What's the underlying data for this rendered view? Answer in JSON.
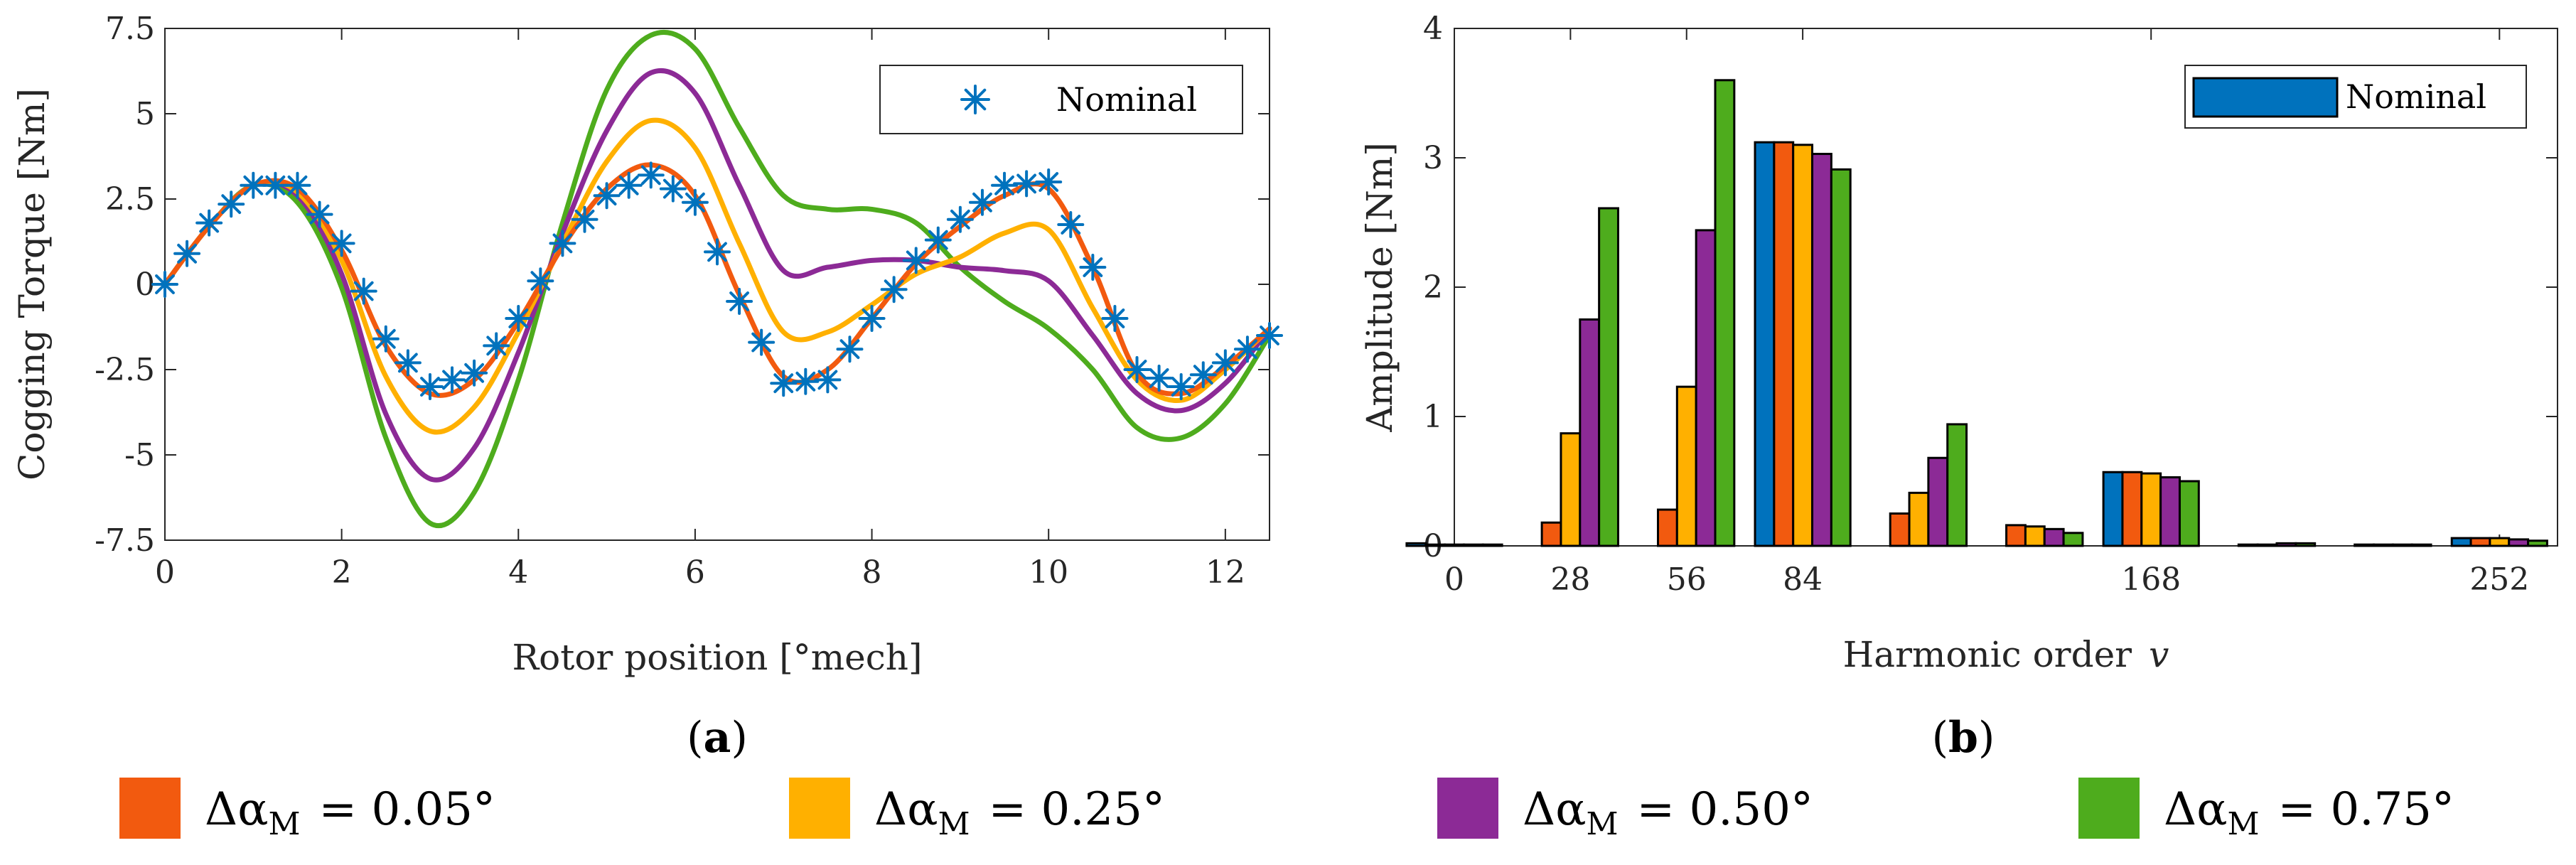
{
  "colors": {
    "nominal": "#0072BD",
    "s005": "#F25A0F",
    "s025": "#FFB000",
    "s050": "#8C2A96",
    "s075": "#4EAC1D"
  },
  "chart_data": [
    {
      "type": "line",
      "panel": "(a)",
      "xlabel": "Rotor position [°mech]",
      "ylabel": "Cogging Torque [Nm]",
      "xlim": [
        0,
        12.5
      ],
      "ylim": [
        -7.5,
        7.5
      ],
      "xticks": [
        0,
        2,
        4,
        6,
        8,
        10,
        12
      ],
      "xtick_labels": [
        "0",
        "2",
        "4",
        "6",
        "8",
        "10",
        "12"
      ],
      "yticks": [
        -7.5,
        -5,
        -2.5,
        0,
        2.5,
        5,
        7.5
      ],
      "ytick_labels": [
        "-7.5",
        "-5",
        "-2.5",
        "0",
        "2.5",
        "5",
        "7.5"
      ],
      "legend": "Nominal",
      "x": [
        0,
        0.5,
        1,
        1.5,
        2,
        2.5,
        3,
        3.5,
        4,
        4.5,
        5,
        5.5,
        6,
        6.5,
        7,
        7.5,
        8,
        8.5,
        9,
        9.5,
        10,
        10.5,
        11,
        11.5,
        12,
        12.5
      ],
      "series": [
        {
          "name": "Nominal",
          "key": "nominal",
          "marker": "asterisk",
          "values": [
            0,
            1.8,
            2.9,
            2.9,
            1.2,
            -1.6,
            -3.0,
            -2.6,
            -1.0,
            1.2,
            2.6,
            3.2,
            2.4,
            -0.5,
            -2.9,
            -2.8,
            -1.0,
            0.7,
            1.9,
            2.9,
            3.0,
            0.5,
            -2.5,
            -3.0,
            -2.3,
            -1.5
          ]
        },
        {
          "name": "Δα_M = 0.05°",
          "key": "s005",
          "values": [
            0,
            1.7,
            2.9,
            2.8,
            1.0,
            -1.8,
            -3.2,
            -2.8,
            -1.1,
            1.1,
            2.8,
            3.5,
            2.6,
            -0.3,
            -2.7,
            -2.5,
            -1.0,
            0.6,
            1.7,
            2.6,
            2.8,
            0.5,
            -2.6,
            -3.2,
            -2.4,
            -1.3
          ]
        },
        {
          "name": "Δα_M = 0.25°",
          "key": "s025",
          "values": [
            0,
            1.7,
            2.9,
            2.7,
            0.7,
            -2.7,
            -4.3,
            -3.6,
            -1.4,
            1.2,
            3.6,
            4.8,
            4.0,
            1.2,
            -1.4,
            -1.4,
            -0.6,
            0.3,
            0.8,
            1.5,
            1.6,
            -0.7,
            -2.8,
            -3.4,
            -2.5,
            -1.3
          ]
        },
        {
          "name": "Δα_M = 0.50°",
          "key": "s050",
          "values": [
            0,
            1.7,
            2.9,
            2.6,
            0.3,
            -3.8,
            -5.7,
            -4.8,
            -2.0,
            1.5,
            4.5,
            6.2,
            5.6,
            2.9,
            0.4,
            0.5,
            0.7,
            0.7,
            0.5,
            0.4,
            0.1,
            -1.5,
            -3.2,
            -3.7,
            -2.9,
            -1.3
          ]
        },
        {
          "name": "Δα_M = 0.75°",
          "key": "s075",
          "values": [
            0,
            1.7,
            2.9,
            2.4,
            -0.1,
            -4.5,
            -7.0,
            -6.1,
            -2.8,
            1.8,
            5.7,
            7.3,
            6.9,
            4.6,
            2.6,
            2.2,
            2.2,
            1.8,
            0.5,
            -0.5,
            -1.3,
            -2.5,
            -4.2,
            -4.5,
            -3.5,
            -1.5
          ]
        }
      ]
    },
    {
      "type": "bar",
      "panel": "(b)",
      "xlabel": "Harmonic order",
      "xlabel_symbol": "v",
      "ylabel": "Amplitude [Nm]",
      "xlim": [
        0,
        266
      ],
      "ylim": [
        0,
        4
      ],
      "xticks": [
        0,
        28,
        56,
        84,
        168,
        252
      ],
      "xtick_labels": [
        "0",
        "28",
        "56",
        "84",
        "168",
        "252"
      ],
      "yticks": [
        0,
        1,
        2,
        3,
        4
      ],
      "ytick_labels": [
        "0",
        "1",
        "2",
        "3",
        "4"
      ],
      "legend": "Nominal",
      "categories": [
        0,
        28,
        56,
        84,
        112,
        140,
        168,
        196,
        224,
        252
      ],
      "series": [
        {
          "name": "Nominal",
          "key": "nominal",
          "values": [
            0.02,
            0,
            0,
            3.12,
            0,
            0,
            0.57,
            0,
            0,
            0.06
          ]
        },
        {
          "name": "Δα_M = 0.05°",
          "key": "s005",
          "values": [
            0.01,
            0.18,
            0.28,
            3.12,
            0.25,
            0.16,
            0.57,
            0.01,
            0.01,
            0.06
          ]
        },
        {
          "name": "Δα_M = 0.25°",
          "key": "s025",
          "values": [
            0.01,
            0.87,
            1.23,
            3.1,
            0.41,
            0.15,
            0.56,
            0.01,
            0.01,
            0.06
          ]
        },
        {
          "name": "Δα_M = 0.50°",
          "key": "s050",
          "values": [
            0.01,
            1.75,
            2.44,
            3.03,
            0.68,
            0.13,
            0.53,
            0.02,
            0.01,
            0.05
          ]
        },
        {
          "name": "Δα_M = 0.75°",
          "key": "s075",
          "values": [
            0.01,
            2.61,
            3.6,
            2.91,
            0.94,
            0.1,
            0.5,
            0.02,
            0.01,
            0.04
          ]
        }
      ]
    }
  ],
  "bottom_legend": [
    {
      "key": "s005",
      "symbol": "Δα",
      "sub": "M",
      "value": "= 0.05°"
    },
    {
      "key": "s025",
      "symbol": "Δα",
      "sub": "M",
      "value": "= 0.25°"
    },
    {
      "key": "s050",
      "symbol": "Δα",
      "sub": "M",
      "value": "= 0.50°"
    },
    {
      "key": "s075",
      "symbol": "Δα",
      "sub": "M",
      "value": "= 0.75°"
    }
  ]
}
